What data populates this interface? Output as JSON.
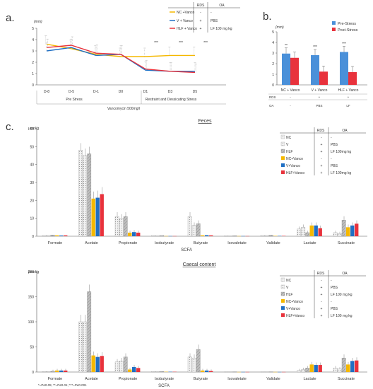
{
  "panels": {
    "a": {
      "label": "a.",
      "unit": "(mm)",
      "yticks": [
        "0",
        "1",
        "2",
        "3",
        "4",
        "5"
      ],
      "day_groups": [
        "Pre Stress",
        "Restraint and Dessicating Stress"
      ],
      "footer": "Vancomycin 500mg/l",
      "stars": [
        "***",
        "***",
        "***"
      ],
      "legend": {
        "head_rds": "RDS",
        "head_oa": "OA",
        "rows": [
          {
            "name": "NC +Vanco",
            "rds": "-",
            "oa": "-"
          },
          {
            "name": "V + Vanco",
            "rds": "+",
            "oa": "PBS"
          },
          {
            "name": "HLF + Vanco",
            "rds": "+",
            "oa": "LF 100 mg kg"
          }
        ]
      }
    },
    "b": {
      "label": "b.",
      "unit": "(mm)",
      "yticks": [
        "0",
        "1",
        "2",
        "3",
        "4",
        "5"
      ],
      "legend": [
        "Pre-Stress",
        "Post-Stress"
      ],
      "stars": [
        "**",
        "***",
        "***"
      ],
      "rds_label": "RDS",
      "oa_label": "OA",
      "rds_row": [
        "-",
        "+",
        "+"
      ],
      "oa_row": [
        "-",
        "PBS",
        "LF"
      ]
    },
    "c": {
      "label": "c.",
      "feces_title": "Feces",
      "caecal_title": "Caecal content",
      "unit": "μmol/g",
      "xlabel": "SCFA",
      "footnote": "*=P≤0.05; **=P≤0.01; ***=P≤0.001",
      "feces_yticks": [
        "0",
        "10",
        "20",
        "30",
        "40",
        "50",
        "60"
      ],
      "caecal_yticks": [
        "0",
        "50",
        "100",
        "150",
        "200"
      ],
      "legend": {
        "head_rds": "RDS",
        "head_oa": "OA",
        "feces_rows": [
          {
            "name": "NC",
            "rds": "-",
            "oa": "-"
          },
          {
            "name": "V",
            "rds": "+",
            "oa": "PBS"
          },
          {
            "name": "HLF",
            "rds": "+",
            "oa": "LF 100mg kg"
          },
          {
            "name": "NC+Vanco",
            "rds": "-",
            "oa": "-"
          },
          {
            "name": "V+Vanco",
            "rds": "+",
            "oa": "PBS"
          },
          {
            "name": "HLF+Vanco",
            "rds": "+",
            "oa": "LF 100mg kg"
          }
        ],
        "caecal_rows": [
          {
            "name": "NC",
            "rds": "-",
            "oa": "-"
          },
          {
            "name": "V",
            "rds": "+",
            "oa": "PBS"
          },
          {
            "name": "HLF",
            "rds": "+",
            "oa": "LF 100 mg kg"
          },
          {
            "name": "NC+Vanco",
            "rds": "-",
            "oa": "-"
          },
          {
            "name": "V+Vanco",
            "rds": "+",
            "oa": "PBS"
          },
          {
            "name": "HLF+Vanco",
            "rds": "+",
            "oa": "LF 100 mg kg"
          }
        ]
      }
    }
  },
  "colors": {
    "nc_vanco": "#f5b800",
    "v_vanco": "#1f6fc4",
    "hlf_vanco": "#e8323c",
    "pre_stress": "#4a90d9",
    "post_stress": "#e8323c",
    "nc_fill": "#f4f4f4",
    "v_fill": "#ebebeb",
    "hlf_fill": "#b9b9b9"
  },
  "chart_data": [
    {
      "type": "line",
      "panel": "a",
      "unit": "(mm)",
      "x": [
        "D-8",
        "D-5",
        "D-1",
        "D0",
        "D1",
        "D3",
        "D5"
      ],
      "ylim": [
        0,
        5
      ],
      "series": [
        {
          "name": "NC +Vanco",
          "values": [
            3.6,
            3.2,
            2.7,
            2.5,
            2.5,
            2.6,
            2.6
          ]
        },
        {
          "name": "V + Vanco",
          "values": [
            3.0,
            3.3,
            2.6,
            2.7,
            1.3,
            1.2,
            1.2
          ]
        },
        {
          "name": "HLF + Vanco",
          "values": [
            3.3,
            3.5,
            2.8,
            2.7,
            1.4,
            1.2,
            1.1
          ]
        }
      ]
    },
    {
      "type": "bar",
      "panel": "b",
      "unit": "(mm)",
      "categories": [
        "NC + Vanco",
        "V + Vanco",
        "HLF + Vanco"
      ],
      "ylim": [
        0,
        5
      ],
      "series": [
        {
          "name": "Pre-Stress",
          "values": [
            2.95,
            2.8,
            3.1
          ]
        },
        {
          "name": "Post-Stress",
          "values": [
            2.55,
            1.25,
            1.2
          ]
        }
      ]
    },
    {
      "type": "bar",
      "panel": "c",
      "title": "Feces",
      "unit": "μmol/g",
      "xlabel": "SCFA",
      "categories": [
        "Formate",
        "Acetate",
        "Propionate",
        "Isobutyrate",
        "Butyrate",
        "Isovaletate",
        "Validate",
        "Lactate",
        "Succinate"
      ],
      "ylim": [
        0,
        60
      ],
      "series": [
        {
          "name": "NC",
          "values": [
            0.5,
            48,
            11,
            0.5,
            11,
            0.3,
            0.5,
            4,
            2
          ]
        },
        {
          "name": "V",
          "values": [
            0.6,
            45,
            10,
            0.4,
            6,
            0.2,
            0.5,
            5,
            1.5
          ]
        },
        {
          "name": "HLF",
          "values": [
            0.7,
            46,
            11,
            0.4,
            7,
            0.3,
            0.6,
            2,
            9
          ]
        },
        {
          "name": "NC+Vanco",
          "values": [
            0.5,
            21,
            2,
            0.1,
            0.5,
            0.1,
            0.2,
            6,
            5
          ]
        },
        {
          "name": "V+Vanco",
          "values": [
            0.4,
            21.5,
            2.3,
            0.1,
            0.6,
            0.1,
            0.2,
            6,
            6
          ]
        },
        {
          "name": "HLF+Vanco",
          "values": [
            0.5,
            23.5,
            2,
            0.1,
            0.5,
            0.1,
            0.2,
            4.5,
            7
          ]
        }
      ]
    },
    {
      "type": "bar",
      "panel": "c",
      "title": "Caecal content",
      "unit": "μmol/g",
      "xlabel": "SCFA",
      "categories": [
        "Formate",
        "Acetate",
        "Propionate",
        "Isobutyrate",
        "Butyrate",
        "Isovaletate",
        "Validate",
        "Lactate",
        "Succinate"
      ],
      "ylim": [
        0,
        200
      ],
      "series": [
        {
          "name": "NC",
          "values": [
            1,
            100,
            20,
            1,
            30,
            0.5,
            0.5,
            3,
            8
          ]
        },
        {
          "name": "V",
          "values": [
            1,
            100,
            22,
            1,
            28,
            0.5,
            0.5,
            5,
            6
          ]
        },
        {
          "name": "HLF",
          "values": [
            1.5,
            160,
            30,
            1,
            45,
            0.5,
            0.5,
            8,
            28
          ]
        },
        {
          "name": "NC+Vanco",
          "values": [
            3,
            33,
            5,
            0.5,
            3,
            0.2,
            0.2,
            15,
            15
          ]
        },
        {
          "name": "V+Vanco",
          "values": [
            3,
            30,
            10,
            0.5,
            3,
            0.2,
            0.2,
            14,
            22
          ]
        },
        {
          "name": "HLF+Vanco",
          "values": [
            3,
            32,
            8,
            0.5,
            2,
            0.2,
            0.2,
            14,
            23
          ]
        }
      ]
    }
  ]
}
